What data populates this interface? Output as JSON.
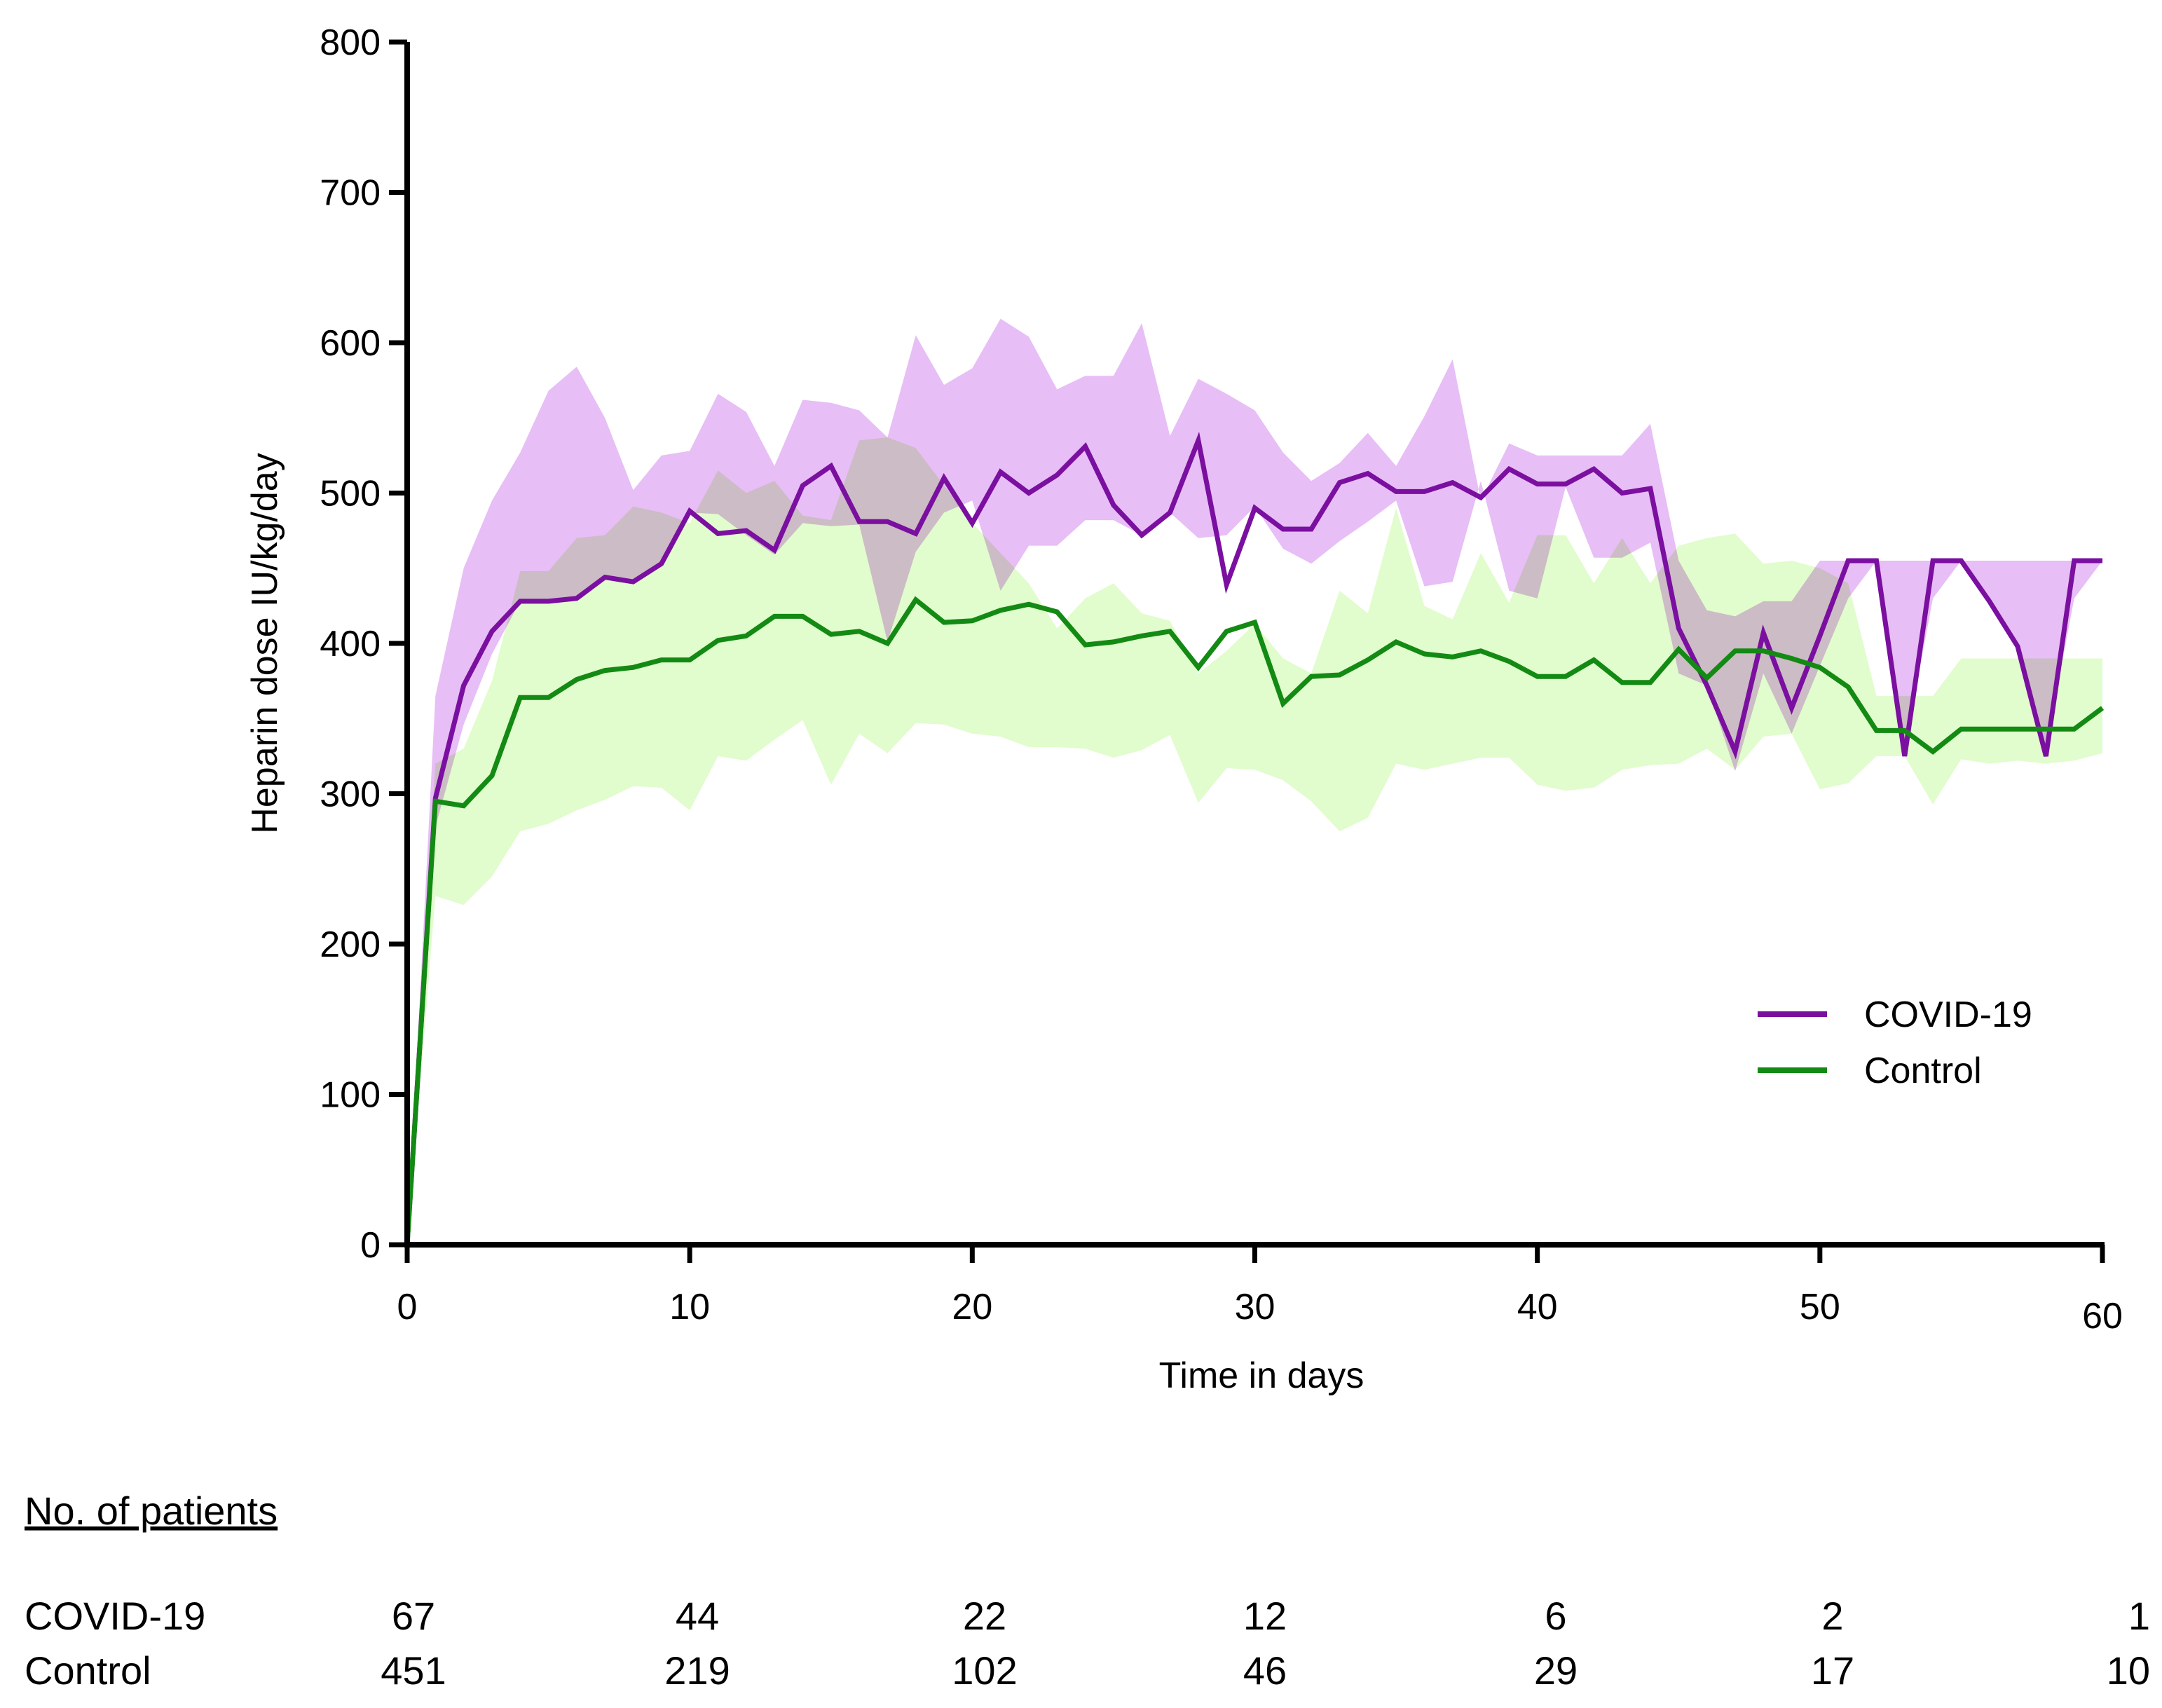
{
  "chart_data": {
    "type": "line",
    "title": "",
    "xlabel": "Time in days",
    "ylabel": "Heparin dose IU/kg/day",
    "xlim": [
      0,
      60
    ],
    "ylim": [
      0,
      800
    ],
    "x_ticks": [
      "0",
      "10",
      "20",
      "30",
      "40",
      "50",
      "60"
    ],
    "y_ticks": [
      "0",
      "100",
      "200",
      "300",
      "400",
      "500",
      "600",
      "700",
      "800"
    ],
    "legend_position": "lower-right",
    "series": [
      {
        "name": "COVID-19",
        "color": "#7a0fa0",
        "band_color": "#e3b3f3",
        "x": [
          0,
          1,
          2,
          3,
          4,
          5,
          6,
          7,
          8,
          9,
          10,
          11,
          12,
          13,
          14,
          15,
          16,
          17,
          18,
          19,
          20,
          21,
          22,
          23,
          24,
          25,
          26,
          27,
          28,
          29,
          30,
          31,
          32,
          33,
          34,
          35,
          36,
          37,
          38,
          39,
          40,
          41,
          42,
          43,
          44,
          45,
          46,
          47,
          48,
          49,
          50,
          51,
          52,
          53,
          54,
          55,
          56,
          57,
          58,
          59,
          60
        ],
        "values": [
          0,
          297,
          372,
          408,
          428,
          428,
          430,
          444,
          441,
          453,
          488,
          473,
          475,
          462,
          505,
          518,
          481,
          481,
          473,
          510,
          480,
          514,
          500,
          512,
          531,
          492,
          472,
          487,
          535,
          439,
          490,
          476,
          476,
          507,
          513,
          501,
          501,
          507,
          497,
          516,
          506,
          506,
          516,
          500,
          503,
          410,
          372,
          328,
          407,
          357,
          405,
          455,
          455,
          325,
          455,
          455,
          428,
          398,
          325,
          455,
          455
        ],
        "band_upper": [
          0,
          365,
          450,
          495,
          527,
          568,
          584,
          550,
          502,
          525,
          528,
          566,
          554,
          518,
          562,
          560,
          555,
          537,
          605,
          572,
          583,
          616,
          604,
          569,
          578,
          578,
          613,
          538,
          576,
          566,
          555,
          527,
          508,
          520,
          540,
          518,
          551,
          589,
          495,
          533,
          525,
          525,
          525,
          525,
          546,
          455,
          422,
          418,
          428,
          428,
          455,
          455,
          455,
          455,
          455,
          455,
          455,
          455,
          455,
          455,
          455
        ],
        "band_lower": [
          0,
          278,
          346,
          393,
          428,
          428,
          429,
          443,
          442,
          451,
          487,
          486,
          472,
          459,
          480,
          478,
          479,
          401,
          461,
          487,
          495,
          435,
          465,
          465,
          482,
          482,
          472,
          487,
          470,
          472,
          491,
          463,
          453,
          468,
          481,
          495,
          438,
          441,
          508,
          435,
          430,
          504,
          457,
          457,
          467,
          380,
          372,
          315,
          380,
          340,
          385,
          430,
          455,
          330,
          430,
          455,
          430,
          400,
          330,
          430,
          455
        ]
      },
      {
        "name": "Control",
        "color": "#138a13",
        "band_color": "#d4fbb8",
        "x": [
          0,
          1,
          2,
          3,
          4,
          5,
          6,
          7,
          8,
          9,
          10,
          11,
          12,
          13,
          14,
          15,
          16,
          17,
          18,
          19,
          20,
          21,
          22,
          23,
          24,
          25,
          26,
          27,
          28,
          29,
          30,
          31,
          32,
          33,
          34,
          35,
          36,
          37,
          38,
          39,
          40,
          41,
          42,
          43,
          44,
          45,
          46,
          47,
          48,
          49,
          50,
          51,
          52,
          53,
          54,
          55,
          56,
          57,
          58,
          59,
          60
        ],
        "values": [
          0,
          295,
          292,
          312,
          364,
          364,
          376,
          382,
          384,
          389,
          389,
          402,
          405,
          418,
          418,
          406,
          408,
          400,
          429,
          414,
          415,
          422,
          426,
          421,
          399,
          401,
          405,
          408,
          384,
          408,
          414,
          360,
          378,
          379,
          389,
          401,
          393,
          391,
          395,
          388,
          378,
          378,
          389,
          374,
          374,
          396,
          377,
          395,
          395,
          390,
          384,
          371,
          342,
          342,
          328,
          343,
          343,
          343,
          343,
          343,
          357
        ],
        "band_upper": [
          0,
          320,
          330,
          375,
          448,
          448,
          470,
          472,
          491,
          487,
          480,
          515,
          500,
          508,
          485,
          482,
          535,
          537,
          530,
          505,
          480,
          460,
          440,
          410,
          430,
          440,
          420,
          415,
          380,
          395,
          413,
          390,
          380,
          435,
          420,
          490,
          425,
          416,
          460,
          427,
          472,
          472,
          440,
          470,
          440,
          465,
          470,
          473,
          453,
          455,
          450,
          440,
          365,
          365,
          365,
          390,
          390,
          390,
          390,
          390,
          390
        ],
        "band_lower": [
          0,
          232,
          226,
          245,
          275,
          280,
          289,
          296,
          305,
          304,
          289,
          325,
          322,
          336,
          349,
          306,
          340,
          327,
          347,
          346,
          340,
          338,
          331,
          331,
          330,
          324,
          329,
          339,
          294,
          317,
          316,
          309,
          295,
          275,
          284,
          320,
          316,
          320,
          324,
          324,
          306,
          302,
          304,
          316,
          319,
          320,
          330,
          316,
          338,
          340,
          303,
          307,
          325,
          325,
          293,
          323,
          320,
          322,
          320,
          322,
          327
        ]
      }
    ],
    "risk_table": {
      "heading": "No. of patients",
      "rows": [
        {
          "label": "COVID-19",
          "values": [
            "67",
            "44",
            "22",
            "12",
            "6",
            "2",
            "1"
          ]
        },
        {
          "label": "Control",
          "values": [
            "451",
            "219",
            "102",
            "46",
            "29",
            "17",
            "10"
          ]
        }
      ]
    }
  }
}
